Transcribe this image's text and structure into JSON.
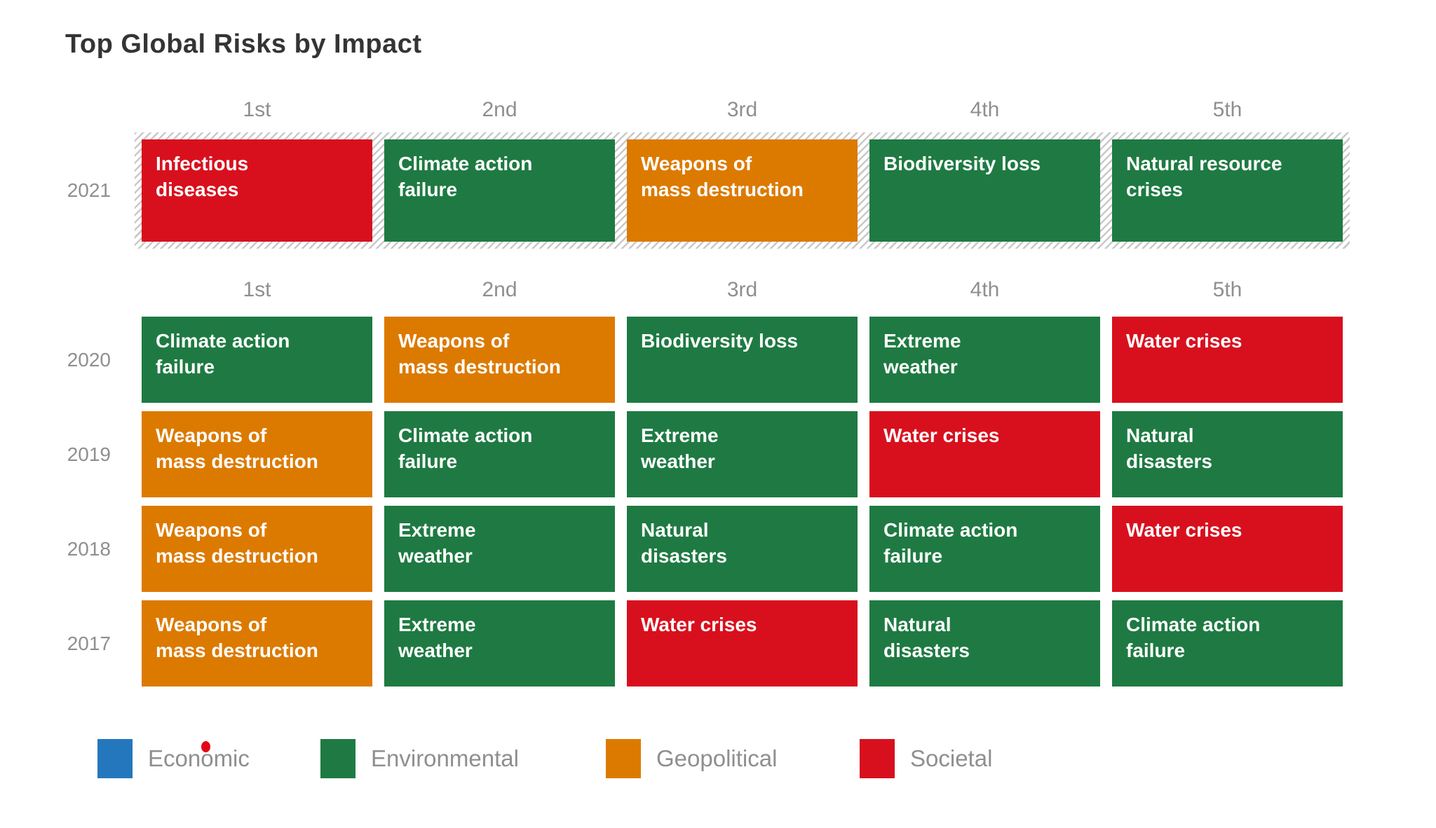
{
  "title": "Top Global Risks by Impact",
  "rank_headers": [
    "1st",
    "2nd",
    "3rd",
    "4th",
    "5th"
  ],
  "category_colors": {
    "economic": "#2477bd",
    "environmental": "#1e7a42",
    "geopolitical": "#dc7a00",
    "societal": "#d8101e"
  },
  "ui_colors": {
    "title_text": "#343434",
    "muted_text": "#8f8f8f",
    "hatch_stripe": "#c9c9c9",
    "cell_text": "#ffffff",
    "background": "#ffffff",
    "cursor_dot": "#e30613"
  },
  "legend": {
    "items": [
      {
        "label": "Economic",
        "category": "economic"
      },
      {
        "label": "Environmental",
        "category": "environmental"
      },
      {
        "label": "Geopolitical",
        "category": "geopolitical"
      },
      {
        "label": "Societal",
        "category": "societal"
      }
    ]
  },
  "chart_data": {
    "type": "table",
    "title": "Top Global Risks by Impact",
    "columns": [
      "1st",
      "2nd",
      "3rd",
      "4th",
      "5th"
    ],
    "highlighted_year": "2021",
    "legend_position": "bottom",
    "rows": [
      {
        "year": "2021",
        "highlight": true,
        "risks": [
          {
            "label": "Infectious diseases",
            "lines": [
              "Infectious",
              "diseases"
            ],
            "category": "societal"
          },
          {
            "label": "Climate action failure",
            "lines": [
              "Climate action",
              "failure"
            ],
            "category": "environmental"
          },
          {
            "label": "Weapons of mass destruction",
            "lines": [
              "Weapons of",
              "mass destruction"
            ],
            "category": "geopolitical"
          },
          {
            "label": "Biodiversity loss",
            "lines": [
              "Biodiversity loss"
            ],
            "category": "environmental"
          },
          {
            "label": "Natural resource crises",
            "lines": [
              "Natural resource",
              "crises"
            ],
            "category": "environmental"
          }
        ]
      },
      {
        "year": "2020",
        "highlight": false,
        "risks": [
          {
            "label": "Climate action failure",
            "lines": [
              "Climate action",
              "failure"
            ],
            "category": "environmental"
          },
          {
            "label": "Weapons of mass destruction",
            "lines": [
              "Weapons of",
              "mass destruction"
            ],
            "category": "geopolitical"
          },
          {
            "label": "Biodiversity loss",
            "lines": [
              "Biodiversity loss"
            ],
            "category": "environmental"
          },
          {
            "label": "Extreme weather",
            "lines": [
              "Extreme",
              "weather"
            ],
            "category": "environmental"
          },
          {
            "label": "Water crises",
            "lines": [
              "Water crises"
            ],
            "category": "societal"
          }
        ]
      },
      {
        "year": "2019",
        "highlight": false,
        "risks": [
          {
            "label": "Weapons of mass destruction",
            "lines": [
              "Weapons of",
              "mass destruction"
            ],
            "category": "geopolitical"
          },
          {
            "label": "Climate action failure",
            "lines": [
              "Climate action",
              "failure"
            ],
            "category": "environmental"
          },
          {
            "label": "Extreme weather",
            "lines": [
              "Extreme",
              "weather"
            ],
            "category": "environmental"
          },
          {
            "label": "Water crises",
            "lines": [
              "Water crises"
            ],
            "category": "societal"
          },
          {
            "label": "Natural disasters",
            "lines": [
              "Natural",
              "disasters"
            ],
            "category": "environmental"
          }
        ]
      },
      {
        "year": "2018",
        "highlight": false,
        "risks": [
          {
            "label": "Weapons of mass destruction",
            "lines": [
              "Weapons of",
              "mass destruction"
            ],
            "category": "geopolitical"
          },
          {
            "label": "Extreme weather",
            "lines": [
              "Extreme",
              "weather"
            ],
            "category": "environmental"
          },
          {
            "label": "Natural disasters",
            "lines": [
              "Natural",
              "disasters"
            ],
            "category": "environmental"
          },
          {
            "label": "Climate action failure",
            "lines": [
              "Climate action",
              "failure"
            ],
            "category": "environmental"
          },
          {
            "label": "Water crises",
            "lines": [
              "Water crises"
            ],
            "category": "societal"
          }
        ]
      },
      {
        "year": "2017",
        "highlight": false,
        "risks": [
          {
            "label": "Weapons of mass destruction",
            "lines": [
              "Weapons of",
              "mass destruction"
            ],
            "category": "geopolitical"
          },
          {
            "label": "Extreme weather",
            "lines": [
              "Extreme",
              "weather"
            ],
            "category": "environmental"
          },
          {
            "label": "Water crises",
            "lines": [
              "Water crises"
            ],
            "category": "societal"
          },
          {
            "label": "Natural disasters",
            "lines": [
              "Natural",
              "disasters"
            ],
            "category": "environmental"
          },
          {
            "label": "Climate action failure",
            "lines": [
              "Climate action",
              "failure"
            ],
            "category": "environmental"
          }
        ]
      }
    ]
  }
}
